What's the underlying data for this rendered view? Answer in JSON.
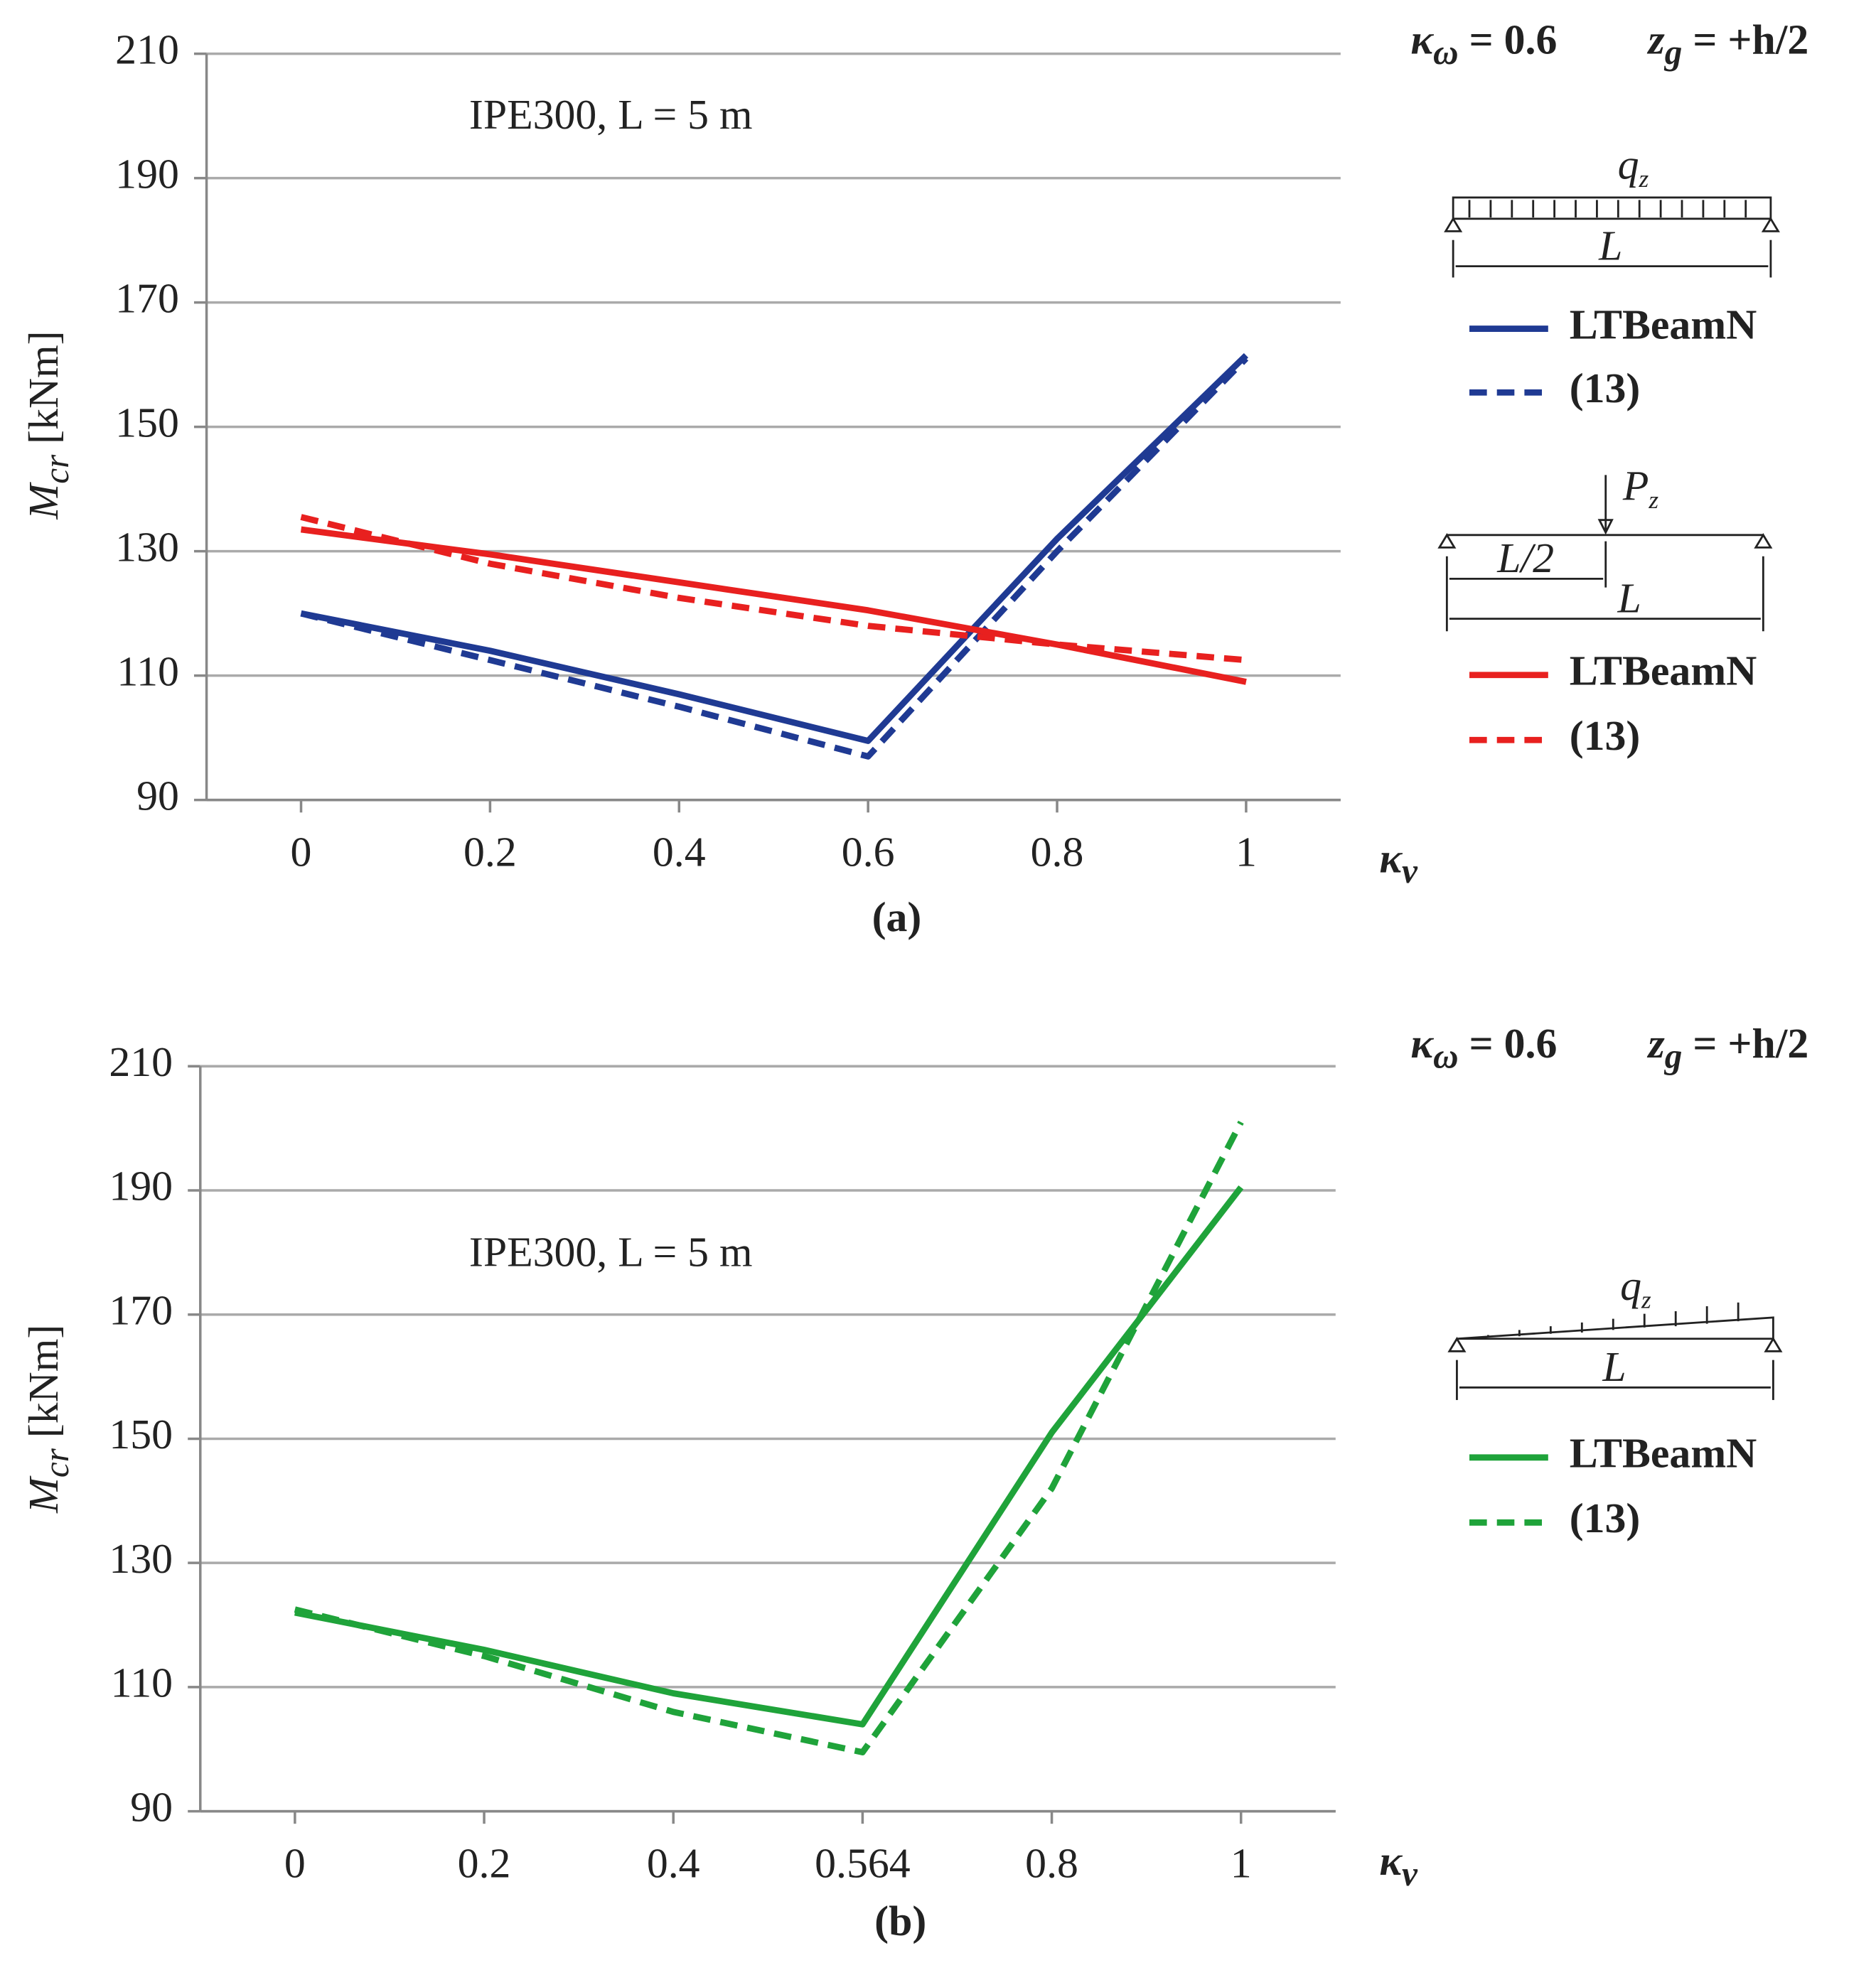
{
  "chart_data": [
    {
      "type": "line",
      "panel_label": "(a)",
      "annotations": [
        {
          "text": "κ",
          "sub": "ω",
          "tail": " = 0.6"
        },
        {
          "text": "z",
          "sub": "g",
          "tail": " = +h/2"
        },
        "IPE300, L = 5 m"
      ],
      "x_label": {
        "text": "κ",
        "sub": "ν"
      },
      "y_label": {
        "text": "M",
        "sub": "cr",
        "tail": " [kNm]"
      },
      "categories": [
        0,
        0.2,
        0.4,
        0.6,
        0.8,
        1
      ],
      "ylim": [
        90,
        210
      ],
      "yticks": [
        90,
        110,
        130,
        150,
        170,
        190,
        210
      ],
      "grid": true,
      "diagram_labels": [
        {
          "text": "q",
          "sub": "z"
        },
        "L",
        {
          "text": "P",
          "sub": "z"
        },
        "L/2",
        "L"
      ],
      "series": [
        {
          "name": "LTBeamN",
          "color": "#1f3a93",
          "dashed": false,
          "values": [
            120,
            114,
            107,
            99.5,
            132,
            161.5
          ]
        },
        {
          "name": "(13)",
          "color": "#1f3a93",
          "dashed": true,
          "values": [
            120,
            112.5,
            105,
            97,
            130,
            161
          ]
        },
        {
          "name": "LTBeamN",
          "color": "#e8201f",
          "dashed": false,
          "values": [
            133.5,
            129.5,
            125,
            120.5,
            115,
            109
          ]
        },
        {
          "name": "(13)",
          "color": "#e8201f",
          "dashed": true,
          "values": [
            135.5,
            128,
            122.5,
            118,
            115,
            112.5
          ]
        }
      ]
    },
    {
      "type": "line",
      "panel_label": "(b)",
      "annotations": [
        {
          "text": "κ",
          "sub": "ω",
          "tail": " = 0.6"
        },
        {
          "text": "z",
          "sub": "g",
          "tail": " = +h/2"
        },
        "IPE300, L = 5 m"
      ],
      "x_label": {
        "text": "κ",
        "sub": "ν"
      },
      "y_label": {
        "text": "M",
        "sub": "cr",
        "tail": " [kNm]"
      },
      "categories": [
        0,
        0.2,
        0.4,
        0.564,
        0.8,
        1
      ],
      "ylim": [
        90,
        210
      ],
      "yticks": [
        90,
        110,
        130,
        150,
        170,
        190,
        210
      ],
      "grid": true,
      "diagram_labels": [
        {
          "text": "q",
          "sub": "z"
        },
        "L"
      ],
      "series": [
        {
          "name": "LTBeamN",
          "color": "#1fa33a",
          "dashed": false,
          "values": [
            122,
            116,
            109,
            104,
            151,
            190.5
          ]
        },
        {
          "name": "(13)",
          "color": "#1fa33a",
          "dashed": true,
          "values": [
            122.5,
            115,
            106,
            99.5,
            142,
            201
          ]
        }
      ]
    }
  ]
}
